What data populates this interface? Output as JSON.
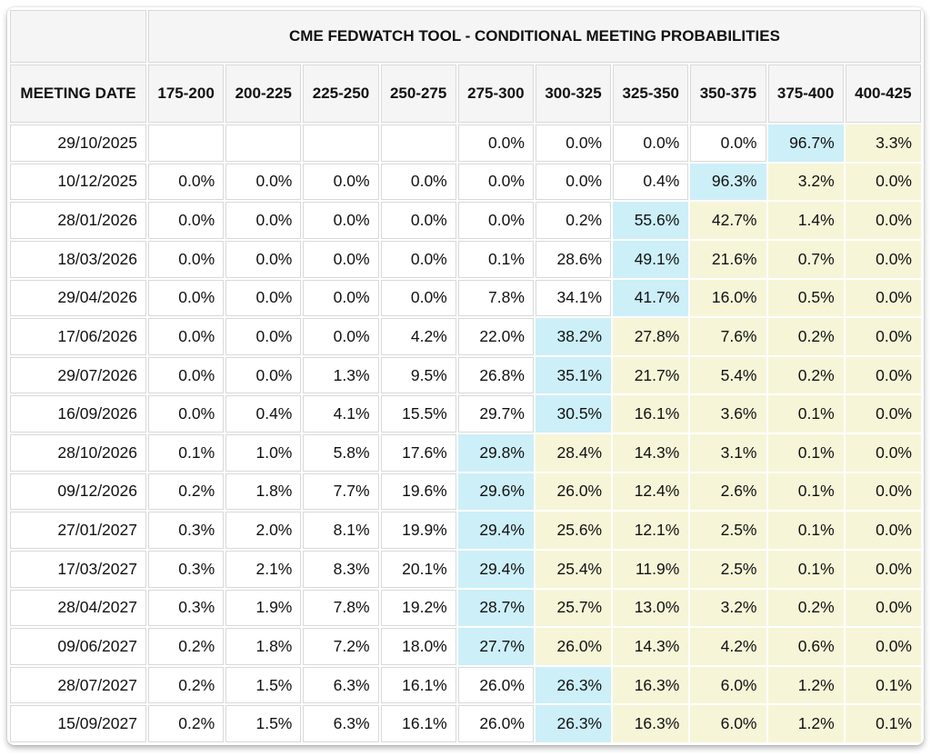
{
  "table": {
    "title": "CME FEDWATCH TOOL - CONDITIONAL MEETING PROBABILITIES",
    "date_header": "MEETING DATE",
    "rate_headers": [
      "175-200",
      "200-225",
      "225-250",
      "250-275",
      "275-300",
      "300-325",
      "325-350",
      "350-375",
      "375-400",
      "400-425"
    ],
    "rows": [
      {
        "date": "29/10/2025",
        "values": [
          "",
          "",
          "",
          "",
          "0.0%",
          "0.0%",
          "0.0%",
          "0.0%",
          "96.7%",
          "3.3%"
        ],
        "styles": "wwwwwwwwby"
      },
      {
        "date": "10/12/2025",
        "values": [
          "0.0%",
          "0.0%",
          "0.0%",
          "0.0%",
          "0.0%",
          "0.0%",
          "0.4%",
          "96.3%",
          "3.2%",
          "0.0%"
        ],
        "styles": "wwwwwwwbyy"
      },
      {
        "date": "28/01/2026",
        "values": [
          "0.0%",
          "0.0%",
          "0.0%",
          "0.0%",
          "0.0%",
          "0.2%",
          "55.6%",
          "42.7%",
          "1.4%",
          "0.0%"
        ],
        "styles": "wwwwwwbyyy"
      },
      {
        "date": "18/03/2026",
        "values": [
          "0.0%",
          "0.0%",
          "0.0%",
          "0.0%",
          "0.1%",
          "28.6%",
          "49.1%",
          "21.6%",
          "0.7%",
          "0.0%"
        ],
        "styles": "wwwwwwbyyy"
      },
      {
        "date": "29/04/2026",
        "values": [
          "0.0%",
          "0.0%",
          "0.0%",
          "0.0%",
          "7.8%",
          "34.1%",
          "41.7%",
          "16.0%",
          "0.5%",
          "0.0%"
        ],
        "styles": "wwwwwwbyyy"
      },
      {
        "date": "17/06/2026",
        "values": [
          "0.0%",
          "0.0%",
          "0.0%",
          "4.2%",
          "22.0%",
          "38.2%",
          "27.8%",
          "7.6%",
          "0.2%",
          "0.0%"
        ],
        "styles": "wwwwwbyyyy"
      },
      {
        "date": "29/07/2026",
        "values": [
          "0.0%",
          "0.0%",
          "1.3%",
          "9.5%",
          "26.8%",
          "35.1%",
          "21.7%",
          "5.4%",
          "0.2%",
          "0.0%"
        ],
        "styles": "wwwwwbyyyy"
      },
      {
        "date": "16/09/2026",
        "values": [
          "0.0%",
          "0.4%",
          "4.1%",
          "15.5%",
          "29.7%",
          "30.5%",
          "16.1%",
          "3.6%",
          "0.1%",
          "0.0%"
        ],
        "styles": "wwwwwbyyyy"
      },
      {
        "date": "28/10/2026",
        "values": [
          "0.1%",
          "1.0%",
          "5.8%",
          "17.6%",
          "29.8%",
          "28.4%",
          "14.3%",
          "3.1%",
          "0.1%",
          "0.0%"
        ],
        "styles": "wwwwbyyyyy"
      },
      {
        "date": "09/12/2026",
        "values": [
          "0.2%",
          "1.8%",
          "7.7%",
          "19.6%",
          "29.6%",
          "26.0%",
          "12.4%",
          "2.6%",
          "0.1%",
          "0.0%"
        ],
        "styles": "wwwwbyyyyy"
      },
      {
        "date": "27/01/2027",
        "values": [
          "0.3%",
          "2.0%",
          "8.1%",
          "19.9%",
          "29.4%",
          "25.6%",
          "12.1%",
          "2.5%",
          "0.1%",
          "0.0%"
        ],
        "styles": "wwwwbyyyyy"
      },
      {
        "date": "17/03/2027",
        "values": [
          "0.3%",
          "2.1%",
          "8.3%",
          "20.1%",
          "29.4%",
          "25.4%",
          "11.9%",
          "2.5%",
          "0.1%",
          "0.0%"
        ],
        "styles": "wwwwbyyyyy"
      },
      {
        "date": "28/04/2027",
        "values": [
          "0.3%",
          "1.9%",
          "7.8%",
          "19.2%",
          "28.7%",
          "25.7%",
          "13.0%",
          "3.2%",
          "0.2%",
          "0.0%"
        ],
        "styles": "wwwwbyyyyy"
      },
      {
        "date": "09/06/2027",
        "values": [
          "0.2%",
          "1.8%",
          "7.2%",
          "18.0%",
          "27.7%",
          "26.0%",
          "14.3%",
          "4.2%",
          "0.6%",
          "0.0%"
        ],
        "styles": "wwwwbyyyyy"
      },
      {
        "date": "28/07/2027",
        "values": [
          "0.2%",
          "1.5%",
          "6.3%",
          "16.1%",
          "26.0%",
          "26.3%",
          "16.3%",
          "6.0%",
          "1.2%",
          "0.1%"
        ],
        "styles": "wwwwwbyyyy"
      },
      {
        "date": "15/09/2027",
        "values": [
          "0.2%",
          "1.5%",
          "6.3%",
          "16.1%",
          "26.0%",
          "26.3%",
          "16.3%",
          "6.0%",
          "1.2%",
          "0.1%"
        ],
        "styles": "wwwwwbyyyy"
      }
    ]
  },
  "colors": {
    "highest_probability_cell": "#cdeff8",
    "right_tail_cell": "#f6f5d8",
    "header_background": "#f5f5f5",
    "grid_border": "#d9d9d9",
    "text": "#111111"
  }
}
